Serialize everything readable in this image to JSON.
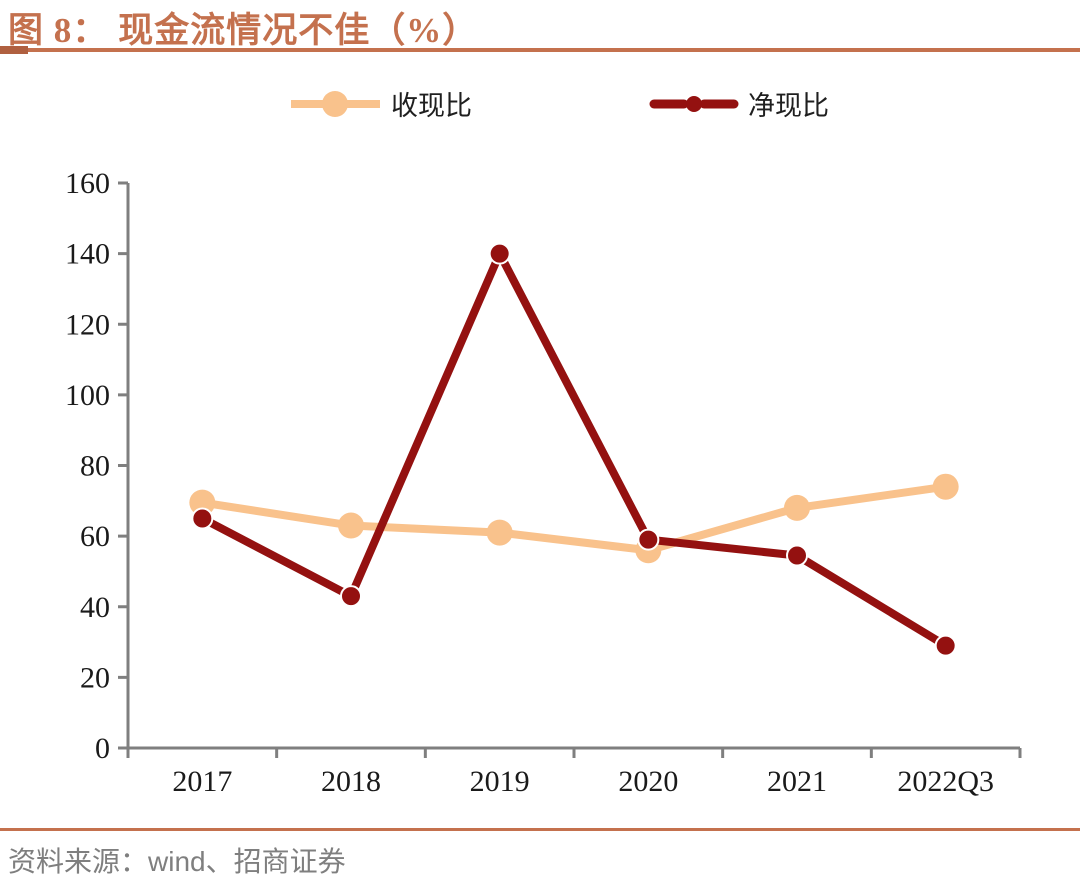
{
  "header": {
    "figure_label": "图 8：",
    "title": "现金流情况不佳（%）"
  },
  "footer": {
    "source_label": "资料来源：",
    "source_wind": "wind",
    "source_rest": "、招商证券"
  },
  "theme": {
    "accent": "#C4714E",
    "accent_dark": "#B06040",
    "axis": "#7F7F7F",
    "tick_label": "#1A1A1A",
    "footer_text": "#7F7F7F",
    "series_1": "#F9C28C",
    "series_2": "#941110"
  },
  "chart_data": {
    "type": "line",
    "title": "图 8：现金流情况不佳（%）",
    "categories": [
      "2017",
      "2018",
      "2019",
      "2020",
      "2021",
      "2022Q3"
    ],
    "series": [
      {
        "name": "收现比",
        "color": "#F9C28C",
        "values": [
          69.5,
          63,
          61,
          56,
          68,
          74
        ],
        "line_width": 8,
        "marker_radius": 13,
        "marker_stroke": "none"
      },
      {
        "name": "净现比",
        "color": "#941110",
        "values": [
          65,
          43,
          140,
          59,
          54.5,
          29
        ],
        "line_width": 8,
        "marker_radius": 10,
        "marker_stroke": "#FFFFFF"
      }
    ],
    "xlabel": "",
    "ylabel": "",
    "ylim": [
      0,
      160
    ],
    "ytick_step": 20,
    "grid": false,
    "legend_position": "top"
  }
}
